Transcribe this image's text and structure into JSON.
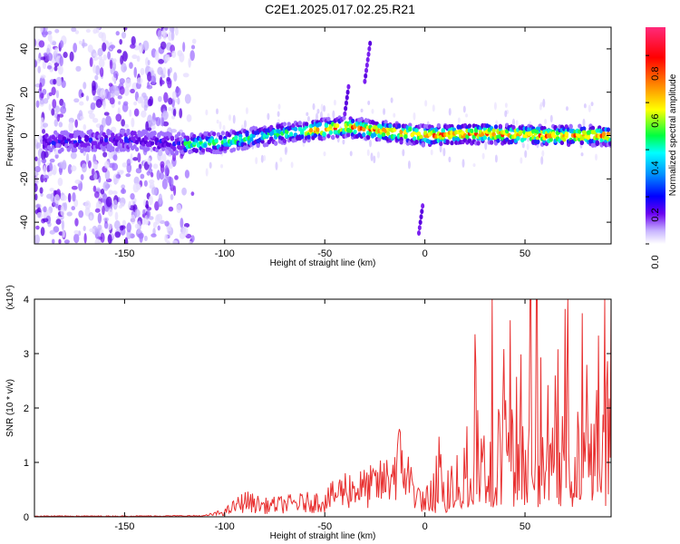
{
  "title": "C2E1.2025.017.02.25.R21",
  "chart_data": [
    {
      "type": "heatmap",
      "title": "C2E1.2025.017.02.25.R21",
      "xlabel": "Height of straight line (km)",
      "ylabel": "Frequency (Hz)",
      "xlim": [
        -195,
        93
      ],
      "ylim": [
        -50,
        50
      ],
      "xticks": [
        -150,
        -100,
        -50,
        0,
        50
      ],
      "yticks": [
        -40,
        -20,
        0,
        20,
        40
      ],
      "colorbar": {
        "label": "Normalized spectral amplitude",
        "range": [
          0,
          0.92
        ],
        "ticks": [
          0.0,
          0.2,
          0.4,
          0.6,
          0.8
        ],
        "colors": [
          "#ffffff",
          "#b49bff",
          "#5a00f0",
          "#0000ff",
          "#00aaff",
          "#00ffff",
          "#00ff40",
          "#ffff00",
          "#ff8000",
          "#ff0000",
          "#ff2a7a"
        ]
      },
      "ridge_frequency": [
        [
          -180,
          -3
        ],
        [
          -150,
          -2
        ],
        [
          -120,
          -4
        ],
        [
          -100,
          -3
        ],
        [
          -80,
          0
        ],
        [
          -60,
          2
        ],
        [
          -40,
          4
        ],
        [
          -20,
          2
        ],
        [
          0,
          0
        ],
        [
          30,
          1
        ],
        [
          60,
          0
        ],
        [
          90,
          0
        ]
      ]
    },
    {
      "type": "line",
      "xlabel": "Height of straight line (km)",
      "ylabel": "SNR (10 * v/v)",
      "y_multiplier_label": "(x10⁴)",
      "xlim": [
        -195,
        93
      ],
      "ylim": [
        0,
        4
      ],
      "xticks": [
        -150,
        -100,
        -50,
        0,
        50
      ],
      "yticks": [
        0,
        1,
        2,
        3,
        4
      ],
      "color": "#e83030",
      "envelope": [
        [
          -195,
          0.02
        ],
        [
          -150,
          0.02
        ],
        [
          -110,
          0.03
        ],
        [
          -100,
          0.15
        ],
        [
          -90,
          0.5
        ],
        [
          -80,
          0.35
        ],
        [
          -60,
          0.45
        ],
        [
          -50,
          0.5
        ],
        [
          -40,
          0.9
        ],
        [
          -30,
          0.9
        ],
        [
          -20,
          1.1
        ],
        [
          -12,
          1.8
        ],
        [
          -5,
          0.8
        ],
        [
          0,
          0.4
        ],
        [
          8,
          1.4
        ],
        [
          15,
          1.3
        ],
        [
          20,
          2.0
        ],
        [
          25,
          3.5
        ],
        [
          30,
          3.4
        ],
        [
          40,
          3.2
        ],
        [
          48,
          4.0
        ],
        [
          55,
          3.6
        ],
        [
          60,
          3.4
        ],
        [
          70,
          3.3
        ],
        [
          80,
          3.2
        ],
        [
          90,
          3.7
        ]
      ]
    }
  ]
}
